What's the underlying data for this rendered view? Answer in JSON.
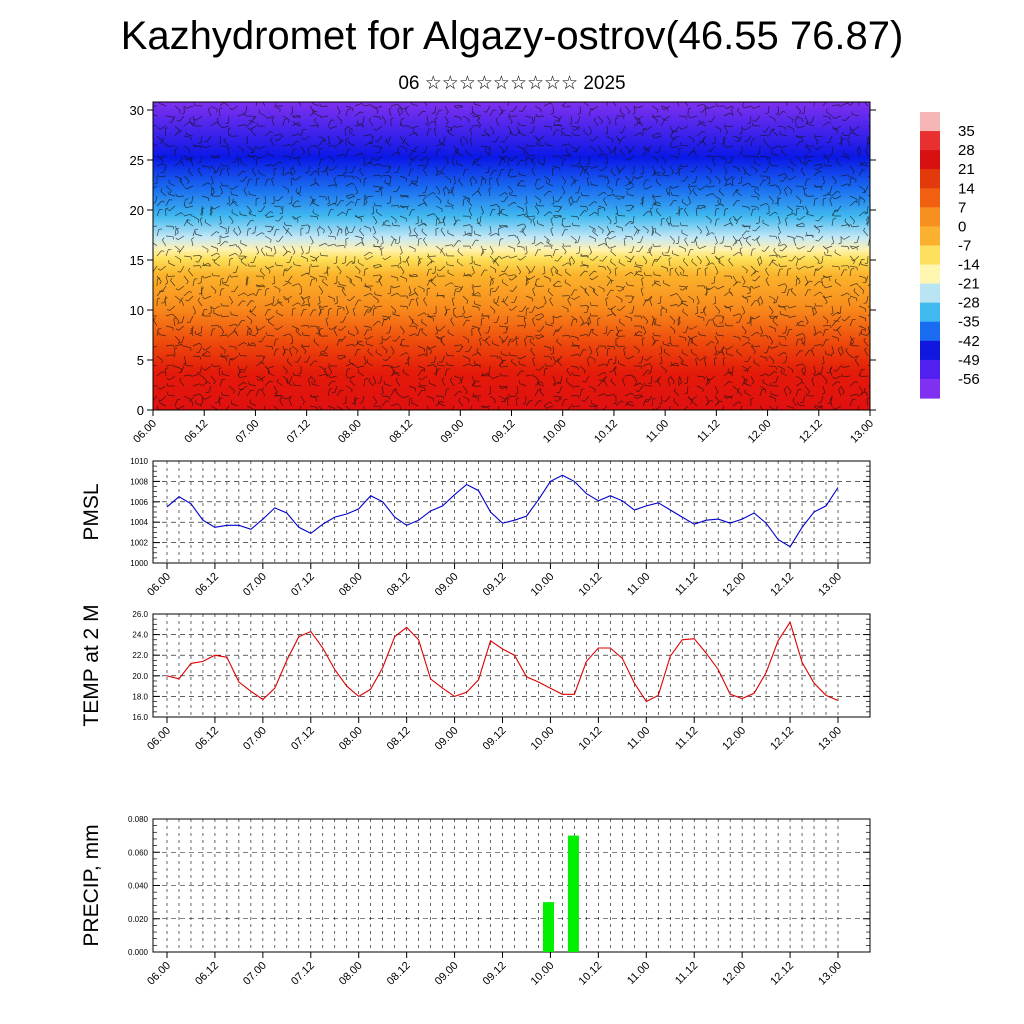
{
  "header": {
    "title": "Kazhydromet for Algazy-ostrov(46.55 76.87)",
    "subtitle": "06 ☆☆☆☆☆☆☆☆☆ 2025"
  },
  "chart_data": [
    {
      "type": "heatmap",
      "name_hint": "temperature-height-section",
      "x_tick_labels": [
        "06.00",
        "06.12",
        "07.00",
        "07.12",
        "08.00",
        "08.12",
        "09.00",
        "09.12",
        "10.00",
        "10.12",
        "11.00",
        "11.12",
        "12.00",
        "12.12",
        "13.00"
      ],
      "y_ticks": [
        0,
        5,
        10,
        15,
        20,
        25,
        30
      ],
      "ylim": [
        0,
        30.8
      ],
      "colorbar": {
        "labels": [
          35,
          28,
          21,
          14,
          7,
          0,
          -7,
          -14,
          -21,
          -28,
          -35,
          -42,
          -49,
          -56
        ],
        "colors_top_to_bottom": [
          "#f5b5b5",
          "#e83030",
          "#d81010",
          "#e23a0a",
          "#f06010",
          "#f89020",
          "#fbb030",
          "#fde060",
          "#fef6b0",
          "#b8e4f4",
          "#40b8f0",
          "#1a6cf0",
          "#1018e0",
          "#5020f0",
          "#8030f0"
        ]
      },
      "vertical_temperature_profile": [
        {
          "height": 0,
          "value": 34
        },
        {
          "height": 5,
          "value": 27
        },
        {
          "height": 10,
          "value": 12
        },
        {
          "height": 14,
          "value": -2
        },
        {
          "height": 16,
          "value": -12
        },
        {
          "height": 20,
          "value": -30
        },
        {
          "height": 25,
          "value": -56
        },
        {
          "height": 30,
          "value": -60
        }
      ],
      "overlay": "wind barbs"
    },
    {
      "type": "line",
      "ylabel": "PMSL",
      "ylim": [
        1000,
        1010
      ],
      "y_tick_labels": [
        "1010",
        "1008",
        "1006",
        "1004",
        "1002",
        "1000"
      ],
      "x_tick_labels": [
        "06.00",
        "06.12",
        "07.00",
        "07.12",
        "08.00",
        "08.12",
        "09.00",
        "09.12",
        "10.00",
        "10.12",
        "11.00",
        "11.12",
        "12.00",
        "12.12",
        "13.00"
      ],
      "color": "#0000cc",
      "x": [
        0,
        0.25,
        0.5,
        0.75,
        1,
        1.25,
        1.5,
        1.75,
        2,
        2.25,
        2.5,
        2.75,
        3,
        3.25,
        3.5,
        3.75,
        4,
        4.25,
        4.5,
        4.75,
        5,
        5.25,
        5.5,
        5.75,
        6,
        6.25,
        6.5,
        6.75,
        7,
        7.25,
        7.5,
        7.75,
        8,
        8.25,
        8.5,
        8.75,
        9,
        9.25,
        9.5,
        9.75,
        10,
        10.25,
        10.5,
        10.75,
        11,
        11.25,
        11.5,
        11.75,
        12,
        12.25,
        12.5,
        12.75,
        13,
        13.25,
        13.5,
        13.75,
        14
      ],
      "values": [
        1005.5,
        1006.5,
        1005.8,
        1004.2,
        1003.5,
        1003.7,
        1003.7,
        1003.3,
        1004.3,
        1005.4,
        1004.9,
        1003.5,
        1002.9,
        1003.8,
        1004.5,
        1004.8,
        1005.3,
        1006.6,
        1006.0,
        1004.5,
        1003.7,
        1004.2,
        1005.1,
        1005.6,
        1006.7,
        1007.7,
        1007.1,
        1005.0,
        1003.9,
        1004.2,
        1004.6,
        1006.2,
        1008.0,
        1008.6,
        1008.0,
        1006.8,
        1006.1,
        1006.6,
        1006.1,
        1005.2,
        1005.6,
        1005.9,
        1005.2,
        1004.5,
        1003.8,
        1004.2,
        1004.3,
        1003.9,
        1004.3,
        1004.9,
        1003.9,
        1002.3,
        1001.6,
        1003.5,
        1005.0,
        1005.6,
        1007.4
      ]
    },
    {
      "type": "line",
      "ylabel": "TEMP at 2 M",
      "ylim": [
        16,
        26
      ],
      "y_tick_labels": [
        "26.0",
        "24.0",
        "22.0",
        "20.0",
        "18.0",
        "16.0"
      ],
      "x_tick_labels": [
        "06.00",
        "06.12",
        "07.00",
        "07.12",
        "08.00",
        "08.12",
        "09.00",
        "09.12",
        "10.00",
        "10.12",
        "11.00",
        "11.12",
        "12.00",
        "12.12",
        "13.00"
      ],
      "color": "#dd0000",
      "x": [
        0,
        0.25,
        0.5,
        0.75,
        1,
        1.25,
        1.5,
        1.75,
        2,
        2.25,
        2.5,
        2.75,
        3,
        3.25,
        3.5,
        3.75,
        4,
        4.25,
        4.5,
        4.75,
        5,
        5.25,
        5.5,
        5.75,
        6,
        6.25,
        6.5,
        6.75,
        7,
        7.25,
        7.5,
        7.75,
        8,
        8.25,
        8.5,
        8.75,
        9,
        9.25,
        9.5,
        9.75,
        10,
        10.25,
        10.5,
        10.75,
        11,
        11.25,
        11.5,
        11.75,
        12,
        12.25,
        12.5,
        12.75,
        13,
        13.25,
        13.5,
        13.75,
        14
      ],
      "values": [
        20.0,
        19.7,
        21.2,
        21.4,
        22.0,
        21.8,
        19.4,
        18.5,
        17.7,
        18.8,
        21.5,
        23.8,
        24.3,
        22.7,
        20.6,
        19.0,
        18.0,
        18.7,
        20.8,
        23.8,
        24.7,
        23.5,
        19.7,
        18.8,
        18.0,
        18.4,
        19.6,
        23.4,
        22.6,
        22.0,
        19.9,
        19.4,
        18.8,
        18.2,
        18.2,
        21.4,
        22.7,
        22.7,
        21.7,
        19.3,
        17.5,
        18.1,
        21.9,
        23.5,
        23.6,
        22.2,
        20.6,
        18.2,
        17.8,
        18.3,
        20.3,
        23.4,
        25.2,
        21.3,
        19.3,
        18.1,
        17.6
      ]
    },
    {
      "type": "bar",
      "ylabel": "PRECIP, mm",
      "ylim": [
        0,
        0.08
      ],
      "y_tick_labels": [
        "0.080",
        "0.060",
        "0.040",
        "0.020",
        "0.000"
      ],
      "x_tick_labels": [
        "06.00",
        "06.12",
        "07.00",
        "07.12",
        "08.00",
        "08.12",
        "09.00",
        "09.12",
        "10.00",
        "10.12",
        "11.00",
        "11.12",
        "12.00",
        "12.12",
        "13.00"
      ],
      "color": "#00ee00",
      "bars": [
        {
          "x": 7.96,
          "value": 0.03
        },
        {
          "x": 8.48,
          "value": 0.07
        }
      ]
    }
  ]
}
